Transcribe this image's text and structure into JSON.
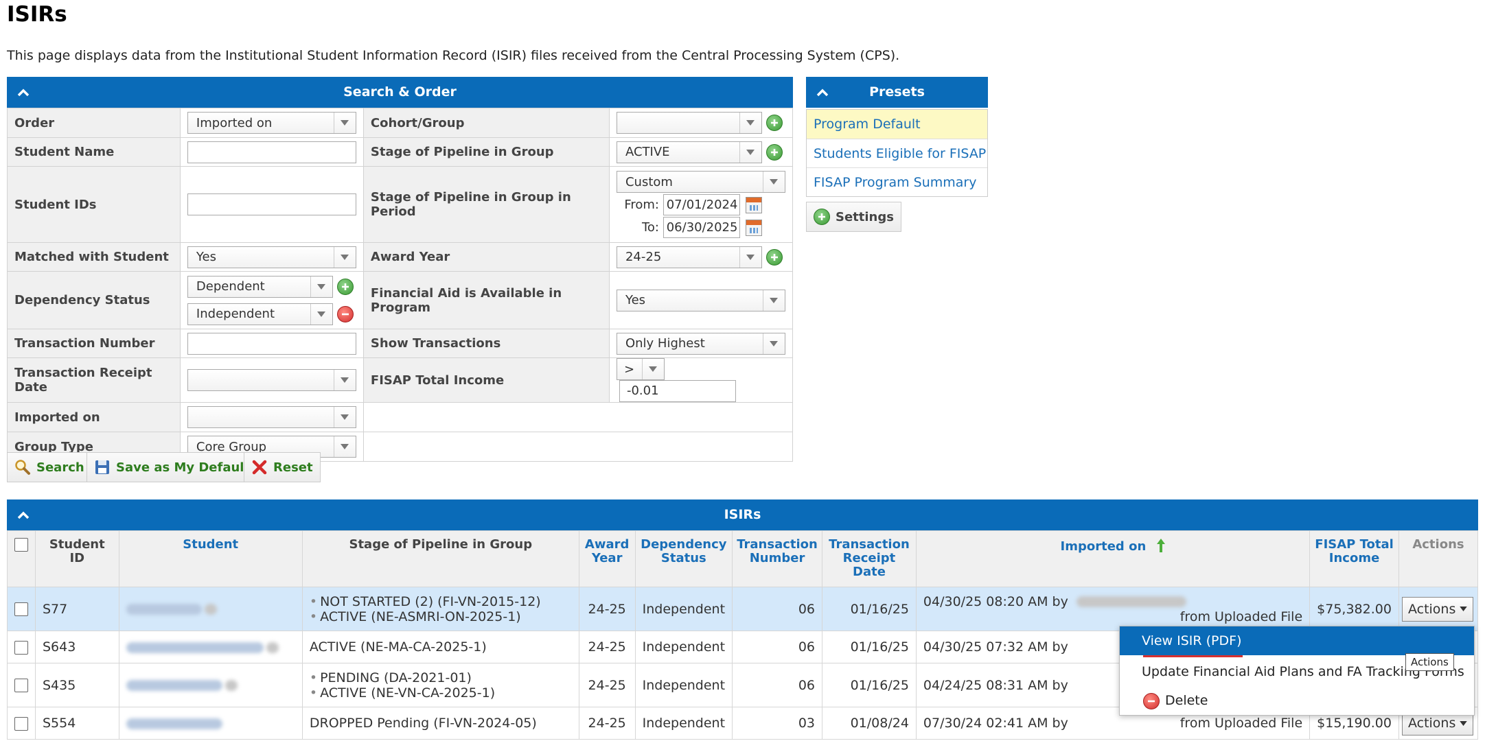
{
  "page": {
    "title": "ISIRs",
    "description": "This page displays data from the Institutional Student Information Record (ISIR) files received from the Central Processing System (CPS)."
  },
  "search": {
    "header": "Search & Order",
    "labels": {
      "order": "Order",
      "student_name": "Student Name",
      "student_ids": "Student IDs",
      "matched": "Matched with Student",
      "dependency": "Dependency Status",
      "transaction_number": "Transaction Number",
      "transaction_receipt_date": "Transaction Receipt Date",
      "imported_on": "Imported on",
      "group_type": "Group Type",
      "cohort": "Cohort/Group",
      "stage": "Stage of Pipeline in Group",
      "stage_period": "Stage of Pipeline in Group in Period",
      "award_year": "Award Year",
      "fa_available": "Financial Aid is Available in Program",
      "show_transactions": "Show Transactions",
      "fisap_income": "FISAP Total Income",
      "from": "From:",
      "to": "To:"
    },
    "values": {
      "order": "Imported on",
      "student_name": "",
      "student_ids": "",
      "matched": "Yes",
      "dependency_1": "Dependent",
      "dependency_2": "Independent",
      "transaction_number": "",
      "transaction_receipt_date": "",
      "imported_on": "",
      "group_type": "Core Group",
      "cohort": "",
      "stage": "ACTIVE",
      "stage_period": "Custom",
      "from_date": "07/01/2024",
      "to_date": "06/30/2025",
      "award_year": "24-25",
      "fa_available": "Yes",
      "show_transactions": "Only Highest",
      "fisap_op": ">",
      "fisap_value": "-0.01"
    },
    "buttons": {
      "search": "Search",
      "save_default": "Save as My Default",
      "reset": "Reset"
    }
  },
  "presets": {
    "header": "Presets",
    "items": [
      "Program Default",
      "Students Eligible for FISAP",
      "FISAP Program Summary"
    ],
    "settings": "Settings"
  },
  "grid": {
    "header": "ISIRs",
    "columns": [
      "Student ID",
      "Student",
      "Stage of Pipeline in Group",
      "Award Year",
      "Dependency Status",
      "Transaction Number",
      "Transaction Receipt Date",
      "Imported on",
      "FISAP Total Income",
      "Actions"
    ],
    "rows": [
      {
        "id": "S77",
        "stages": [
          "NOT STARTED (2) (FI-VN-2015-12)",
          "ACTIVE (NE-ASMRI-ON-2025-1)"
        ],
        "award_year": "24-25",
        "dependency": "Independent",
        "txn": "06",
        "receipt": "01/16/25",
        "imported": "04/30/25 08:20 AM by",
        "source": "from Uploaded File",
        "income": "$75,382.00",
        "action": "Actions"
      },
      {
        "id": "S643",
        "stages": [
          "ACTIVE (NE-MA-CA-2025-1)"
        ],
        "award_year": "24-25",
        "dependency": "Independent",
        "txn": "06",
        "receipt": "01/16/25",
        "imported": "04/30/25 07:32 AM by",
        "source": "",
        "income": "",
        "action": ""
      },
      {
        "id": "S435",
        "stages": [
          "PENDING (DA-2021-01)",
          "ACTIVE (NE-VN-CA-2025-1)"
        ],
        "award_year": "24-25",
        "dependency": "Independent",
        "txn": "06",
        "receipt": "01/16/25",
        "imported": "04/24/25 08:31 AM by",
        "source": "",
        "income": "",
        "action": ""
      },
      {
        "id": "S554",
        "stages": [
          "DROPPED Pending (FI-VN-2024-05)"
        ],
        "award_year": "24-25",
        "dependency": "Independent",
        "txn": "03",
        "receipt": "01/08/24",
        "imported": "07/30/24 02:41 AM by",
        "source": "from Uploaded File",
        "income": "$15,190.00",
        "action": "Actions"
      }
    ]
  },
  "menu": {
    "items": [
      "View ISIR (PDF)",
      "Update Financial Aid Plans and FA Tracking Forms",
      "Delete"
    ],
    "tooltip": "Actions"
  },
  "colors": {
    "header_blue": "#0a6bb8",
    "link_blue": "#1a6fb8",
    "selected_row": "#d4e8fa",
    "preset_highlight": "#fdf9c4",
    "button_green": "#2e7d1e",
    "delete_red": "#d32f2f"
  }
}
